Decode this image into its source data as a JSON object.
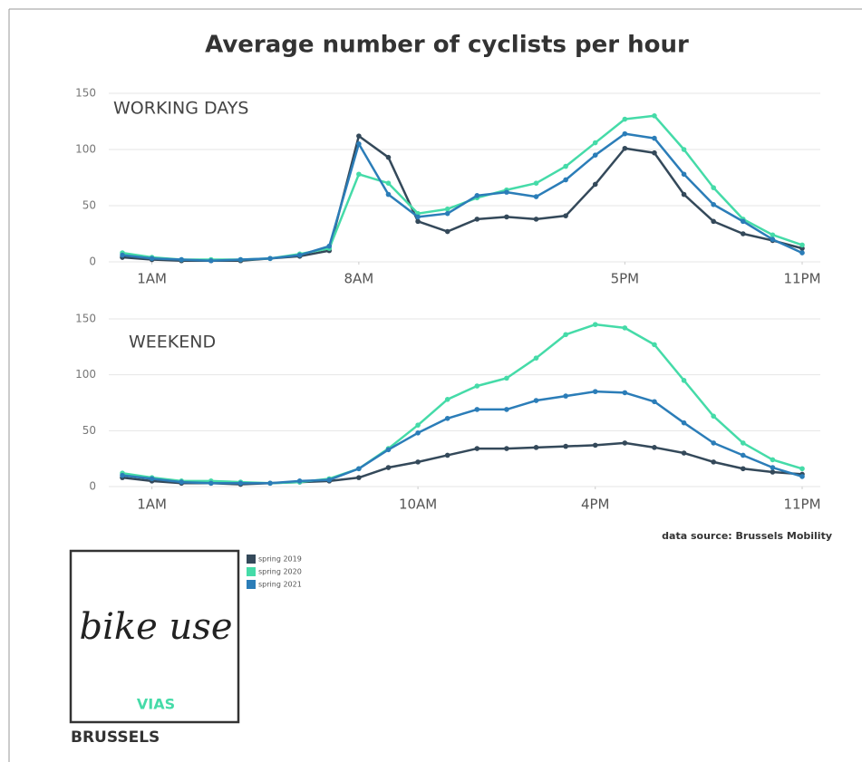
{
  "title": "Average number of cyclists per hour",
  "source": "data source: Brussels Mobility",
  "logo": {
    "text": "bike use",
    "brand": "VIAS",
    "city": "BRUSSELS"
  },
  "chart_data": [
    {
      "type": "line",
      "title": "WORKING DAYS",
      "x": [
        0,
        1,
        2,
        3,
        4,
        5,
        6,
        7,
        8,
        9,
        10,
        11,
        12,
        13,
        14,
        15,
        16,
        17,
        18,
        19,
        20,
        21,
        22,
        23
      ],
      "xlim": [
        0,
        23
      ],
      "xticks": [
        {
          "value": 1,
          "label": "1AM"
        },
        {
          "value": 8,
          "label": "8AM"
        },
        {
          "value": 17,
          "label": "5PM"
        },
        {
          "value": 23,
          "label": "11PM"
        }
      ],
      "ylim": [
        0,
        150
      ],
      "yticks": [
        0,
        50,
        100,
        150
      ],
      "grid": true,
      "series": [
        {
          "name": "spring 2019",
          "color": "#34495a",
          "values": [
            4,
            2,
            1,
            1,
            1,
            3,
            5,
            10,
            112,
            93,
            36,
            27,
            38,
            40,
            38,
            41,
            69,
            101,
            97,
            60,
            36,
            25,
            19,
            12
          ]
        },
        {
          "name": "spring 2020",
          "color": "#45dba8",
          "values": [
            8,
            4,
            2,
            2,
            2,
            3,
            7,
            12,
            78,
            70,
            43,
            47,
            57,
            64,
            70,
            85,
            106,
            127,
            130,
            100,
            66,
            38,
            24,
            15
          ]
        },
        {
          "name": "spring 2021",
          "color": "#2b7db8",
          "values": [
            6,
            3,
            2,
            1,
            2,
            3,
            6,
            14,
            105,
            60,
            40,
            43,
            59,
            62,
            58,
            73,
            95,
            114,
            110,
            78,
            51,
            36,
            20,
            8
          ]
        }
      ]
    },
    {
      "type": "line",
      "title": "WEEKEND",
      "x": [
        0,
        1,
        2,
        3,
        4,
        5,
        6,
        7,
        8,
        9,
        10,
        11,
        12,
        13,
        14,
        15,
        16,
        17,
        18,
        19,
        20,
        21,
        22,
        23
      ],
      "xlim": [
        0,
        23
      ],
      "xticks": [
        {
          "value": 1,
          "label": "1AM"
        },
        {
          "value": 10,
          "label": "10AM"
        },
        {
          "value": 16,
          "label": "4PM"
        },
        {
          "value": 23,
          "label": "11PM"
        }
      ],
      "ylim": [
        0,
        150
      ],
      "yticks": [
        0,
        50,
        100,
        150
      ],
      "grid": true,
      "series": [
        {
          "color": "#34495a",
          "values": [
            8,
            5,
            3,
            3,
            2,
            3,
            4,
            5,
            8,
            17,
            22,
            28,
            34,
            34,
            35,
            36,
            37,
            39,
            35,
            30,
            22,
            16,
            13,
            11
          ]
        },
        {
          "color": "#45dba8",
          "values": [
            12,
            8,
            5,
            5,
            4,
            3,
            4,
            7,
            16,
            34,
            55,
            78,
            90,
            97,
            115,
            136,
            145,
            142,
            127,
            95,
            63,
            39,
            24,
            16
          ]
        },
        {
          "color": "#2b7db8",
          "values": [
            10,
            7,
            4,
            3,
            3,
            3,
            5,
            6,
            16,
            33,
            48,
            61,
            69,
            69,
            77,
            81,
            85,
            84,
            76,
            57,
            39,
            28,
            17,
            9
          ]
        }
      ]
    }
  ]
}
